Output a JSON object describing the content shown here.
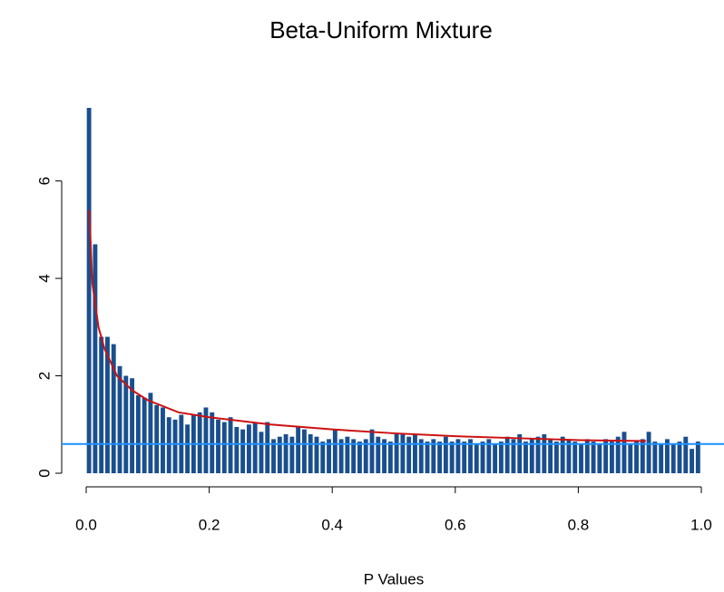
{
  "chart_data": {
    "type": "histogram",
    "title": "Beta-Uniform Mixture",
    "xlabel": "P Values",
    "bins": [
      0,
      0.01,
      0.02,
      0.03,
      0.04,
      0.05,
      0.06,
      0.07,
      0.08,
      0.09,
      0.1,
      0.11,
      0.12,
      0.13,
      0.14,
      0.15,
      0.16,
      0.17,
      0.18,
      0.19,
      0.2,
      0.21,
      0.22,
      0.23,
      0.24,
      0.25,
      0.26,
      0.27,
      0.28,
      0.29,
      0.3,
      0.31,
      0.32,
      0.33,
      0.34,
      0.35,
      0.36,
      0.37,
      0.38,
      0.39,
      0.4,
      0.41,
      0.42,
      0.43,
      0.44,
      0.45,
      0.46,
      0.47,
      0.48,
      0.49,
      0.5,
      0.51,
      0.52,
      0.53,
      0.54,
      0.55,
      0.56,
      0.57,
      0.58,
      0.59,
      0.6,
      0.61,
      0.62,
      0.63,
      0.64,
      0.65,
      0.66,
      0.67,
      0.68,
      0.69,
      0.7,
      0.71,
      0.72,
      0.73,
      0.74,
      0.75,
      0.76,
      0.77,
      0.78,
      0.79,
      0.8,
      0.81,
      0.82,
      0.83,
      0.84,
      0.85,
      0.86,
      0.87,
      0.88,
      0.89,
      0.9,
      0.91,
      0.92,
      0.93,
      0.94,
      0.95,
      0.96,
      0.97,
      0.98,
      0.99,
      1
    ],
    "counts": [
      7.5,
      4.7,
      2.8,
      2.8,
      2.65,
      2.2,
      2.0,
      1.95,
      1.6,
      1.55,
      1.65,
      1.4,
      1.35,
      1.15,
      1.1,
      1.2,
      1.0,
      1.2,
      1.25,
      1.35,
      1.25,
      1.1,
      1.05,
      1.15,
      0.95,
      0.9,
      1.0,
      1.05,
      0.85,
      1.05,
      0.7,
      0.75,
      0.8,
      0.75,
      0.95,
      0.9,
      0.8,
      0.75,
      0.65,
      0.7,
      0.9,
      0.7,
      0.75,
      0.7,
      0.65,
      0.7,
      0.9,
      0.75,
      0.7,
      0.65,
      0.8,
      0.8,
      0.75,
      0.8,
      0.7,
      0.65,
      0.7,
      0.65,
      0.75,
      0.65,
      0.7,
      0.65,
      0.7,
      0.6,
      0.65,
      0.7,
      0.6,
      0.65,
      0.75,
      0.7,
      0.8,
      0.65,
      0.7,
      0.75,
      0.8,
      0.7,
      0.65,
      0.75,
      0.7,
      0.65,
      0.6,
      0.7,
      0.65,
      0.6,
      0.7,
      0.65,
      0.75,
      0.85,
      0.6,
      0.65,
      0.7,
      0.85,
      0.65,
      0.6,
      0.7,
      0.6,
      0.65,
      0.75,
      0.5,
      0.65
    ],
    "color": "#1a4f8e",
    "curve": {
      "color": "#cc1111",
      "x": [
        0.005,
        0.01,
        0.02,
        0.03,
        0.05,
        0.075,
        0.1,
        0.15,
        0.2,
        0.3,
        0.4,
        0.5,
        0.6,
        0.7,
        0.8,
        0.91
      ],
      "y": [
        5.4,
        3.9,
        3.0,
        2.55,
        2.0,
        1.7,
        1.5,
        1.25,
        1.15,
        1.0,
        0.9,
        0.82,
        0.76,
        0.72,
        0.68,
        0.66
      ]
    },
    "hline": {
      "value": 0.6,
      "color": "#1e90ff"
    },
    "xlim": [
      0,
      1
    ],
    "ylim": [
      0,
      7.5
    ],
    "xticks": [
      {
        "value": 0,
        "label": "0.0"
      },
      0.2,
      0.4,
      0.6,
      0.8,
      {
        "value": 1,
        "label": "1.0"
      }
    ],
    "yticks": [
      0,
      2,
      4,
      6
    ]
  }
}
